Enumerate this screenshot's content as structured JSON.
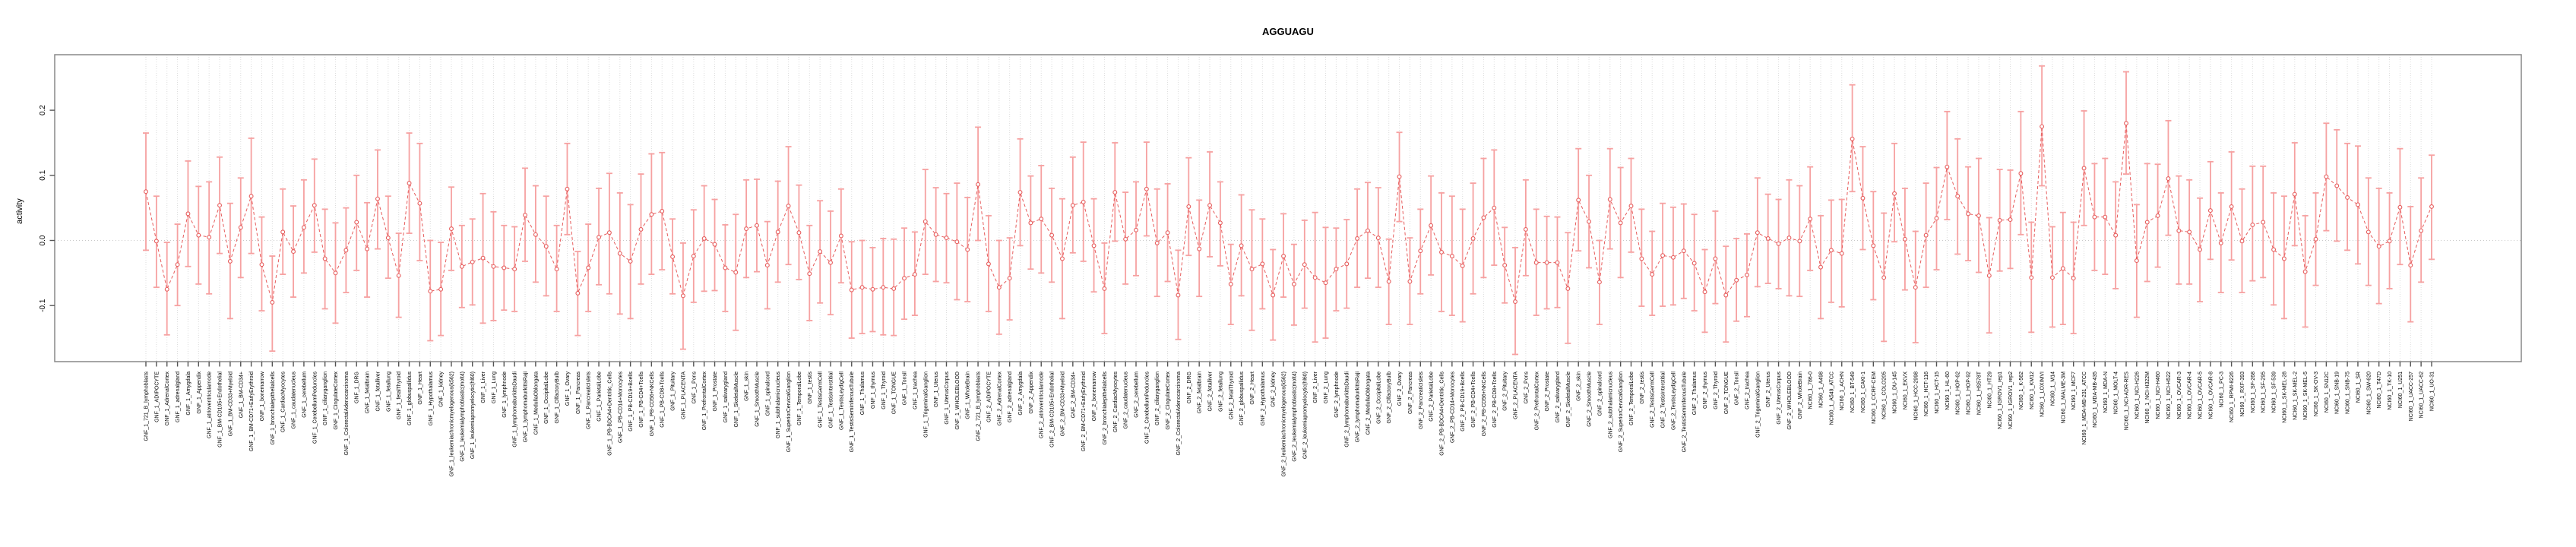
{
  "chart_data": {
    "type": "errorbar-line",
    "title": "AGGUAGU",
    "ylabel": "activity",
    "xlabel": "",
    "legend": "none",
    "grid": "vertical dotted line per category, horizontal dotted line at zero",
    "ylim": [
      -0.186,
      0.285
    ],
    "ytick_values": [
      0.2,
      0.1,
      0.0,
      -0.1
    ],
    "ytick_labels": [
      "0.2",
      "0.1",
      "0.0",
      "-0.1"
    ],
    "point_color": "#e65c5c",
    "whisker_color": "#f6a1a1",
    "gridline_color": "#dcdcdc",
    "zeroline_color": "#c8c8c8",
    "border_color": "#888888",
    "categories": [
      "GNF_1_721_B_lymphoblasts",
      "GNF_1_ADIPOCYTE",
      "GNF_1_AdrenalCortex",
      "GNF_1_adrenalgland",
      "GNF_1_Amygdala",
      "GNF_1_Appendix",
      "GNF_1_atrioventricularnode",
      "GNF_1_BM-CD105+Endothelial",
      "GNF_1_BM-CD33+Myeloid",
      "GNF_1_BM-CD34+",
      "GNF_1_BM-CD71+EarlyErythroid",
      "GNF_1_bonemarrow",
      "GNF_1_bronchialepithelialcells",
      "GNF_1_CardiacMyocytes",
      "GNF_1_caudatenucleus",
      "GNF_1_cerebellum",
      "GNF_1_CerebellumPeduncles",
      "GNF_1_ciliaryganglion",
      "GNF_1_CingulateCortex",
      "GNF_1_ColorectalAdenocarcinoma",
      "GNF_1_DRG",
      "GNF_1_fetalbrain",
      "GNF_1_fetalliver",
      "GNF_1_fetallung",
      "GNF_1_fetalThyroid",
      "GNF_1_globuspallidus",
      "GNF_1_Heart",
      "GNF_1_Hypothalamus",
      "GNF_1_kidney",
      "GNF_1_leukemiachronicmyelogenous(k562)",
      "GNF_1_leukemialymphoblastic(molt4)",
      "GNF_1_leukemiapromyelocytic(hl60)",
      "GNF_1_Liver",
      "GNF_1_Lung",
      "GNF_1_lymphnode",
      "GNF_1_lymphomaburkittsDaudi",
      "GNF_1_lymphomaburkittsRaji",
      "GNF_1_MedullaOblongata",
      "GNF_1_OccipitalLobe",
      "GNF_1_OlfactoryBulb",
      "GNF_1_Ovary",
      "GNF_1_Pancreas",
      "GNF_1_PancreaticIslets",
      "GNF_1_ParietalLobe",
      "GNF_1_PB-BDCA4+Dentritic_Cells",
      "GNF_1_PB-CD14+Monocytes",
      "GNF_1_PB-CD19+Bcells",
      "GNF_1_PB-CD4+Tcells",
      "GNF_1_PB-CD56+NKCells",
      "GNF_1_PB-CD8+Tcells",
      "GNF_1_Pituitary",
      "GNF_1_PLACENTA",
      "GNF_1_Pons",
      "GNF_1_PrefrontalCortex",
      "GNF_1_Prostate",
      "GNF_1_salivarygland",
      "GNF_1_SkeletalMuscle",
      "GNF_1_skin",
      "GNF_1_SmoothMuscle",
      "GNF_1_spinalcord",
      "GNF_1_subthalamicnucleus",
      "GNF_1_SuperiorCervicalGanglion",
      "GNF_1_TemporalLobe",
      "GNF_1_testis",
      "GNF_1_TestisGermCell",
      "GNF_1_TestisInterstitial",
      "GNF_1_TestisLeydigCell",
      "GNF_1_TestisSeminiferousTubule",
      "GNF_1_Thalamus",
      "GNF_1_thymus",
      "GNF_1_Thyroid",
      "GNF_1_TONGUE",
      "GNF_1_Tonsil",
      "GNF_1_trachea",
      "GNF_1_TrigeminalGanglion",
      "GNF_1_Uterus",
      "GNF_1_UterusCorpus",
      "GNF_1_WHOLEBLOOD",
      "GNF_1_WholeBrain",
      "GNF_2_721_B_lymphoblasts",
      "GNF_2_ADIPOCYTE",
      "GNF_2_AdrenalCortex",
      "GNF_2_adrenalgland",
      "GNF_2_Amygdala",
      "GNF_2_Appendix",
      "GNF_2_atrioventricularnode",
      "GNF_2_BM-CD105+Endothelial",
      "GNF_2_BM-CD33+Myeloid",
      "GNF_2_BM-CD34+",
      "GNF_2_BM-CD71+EarlyErythroid",
      "GNF_2_bonemarrow",
      "GNF_2_bronchialepithelialcells",
      "GNF_2_CardiacMyocytes",
      "GNF_2_caudatenucleus",
      "GNF_2_cerebellum",
      "GNF_2_CerebellumPeduncles",
      "GNF_2_ciliaryganglion",
      "GNF_2_CingulateCortex",
      "GNF_2_ColorectalAdenocarcinoma",
      "GNF_2_DRG",
      "GNF_2_fetalbrain",
      "GNF_2_fetalliver",
      "GNF_2_fetallung",
      "GNF_2_fetalThyroid",
      "GNF_2_globuspallidus",
      "GNF_2_Heart",
      "GNF_2_Hypothalamus",
      "GNF_2_kidney",
      "GNF_2_leukemiachronicmyelogenous(k562)",
      "GNF_2_leukemialymphoblastic(molt4)",
      "GNF_2_leukemiapromyelocytic(hl60)",
      "GNF_2_Liver",
      "GNF_2_Lung",
      "GNF_2_lymphnode",
      "GNF_2_lymphomaburkittsDaudi",
      "GNF_2_lymphomaburkittsRaji",
      "GNF_2_MedullaOblongata",
      "GNF_2_OccipitalLobe",
      "GNF_2_OlfactoryBulb",
      "GNF_2_Ovary",
      "GNF_2_Pancreas",
      "GNF_2_PancreaticIslets",
      "GNF_2_ParietalLobe",
      "GNF_2_PB-BDCA4+Dentritic_Cells",
      "GNF_2_PB-CD14+Monocytes",
      "GNF_2_PB-CD19+Bcells",
      "GNF_2_PB-CD4+Tcells",
      "GNF_2_PB-CD56+NKCells",
      "GNF_2_PB-CD8+Tcells",
      "GNF_2_Pituitary",
      "GNF_2_PLACENTA",
      "GNF_2_Pons",
      "GNF_2_PrefrontalCortex",
      "GNF_2_Prostate",
      "GNF_2_salivarygland",
      "GNF_2_SkeletalMuscle",
      "GNF_2_skin",
      "GNF_2_SmoothMuscle",
      "GNF_2_spinalcord",
      "GNF_2_subthalamicnucleus",
      "GNF_2_SuperiorCervicalGanglion",
      "GNF_2_TemporalLobe",
      "GNF_2_testis",
      "GNF_2_TestisGermCell",
      "GNF_2_TestisInterstitial",
      "GNF_2_TestisLeydigCell",
      "GNF_2_TestisSeminiferousTubule",
      "GNF_2_Thalamus",
      "GNF_2_thymus",
      "GNF_2_Thyroid",
      "GNF_2_TONGUE",
      "GNF_2_Tonsil",
      "GNF_2_trachea",
      "GNF_2_TrigeminalGanglion",
      "GNF_2_Uterus",
      "GNF_2_UterusCorpus",
      "GNF_2_WHOLEBLOOD",
      "GNF_2_WholeBrain",
      "NCI60_1_786-0",
      "NCI60_1_A498",
      "NCI60_1_A549_ATCC",
      "NCI60_1_ACHN",
      "NCI60_1_BT-549",
      "NCI60_1_CAKI-1",
      "NCI60_1_CCRF-CEM",
      "NCI60_1_COLO205",
      "NCI60_1_DU-145",
      "NCI60_1_EKVX",
      "NCI60_1_HCC-2998",
      "NCI60_1_HCT-116",
      "NCI60_1_HCT-15",
      "NCI60_1_HL-60",
      "NCI60_1_HOP-62",
      "NCI60_1_HOP-92",
      "NCI60_1_HS578T",
      "NCI60_1_HT29",
      "NCI60_1_IGROV1_rep1",
      "NCI60_1_IGROV1_rep2",
      "NCI60_1_K-562",
      "NCI60_1_KM12",
      "NCI60_1_LOXIMVI",
      "NCI60_1_M14",
      "NCI60_1_MALME-3M",
      "NCI60_1_MCF7",
      "NCI60_1_MDA-MB-231_ATCC",
      "NCI60_1_MDA-MB-435",
      "NCI60_1_MDA-N",
      "NCI60_1_MOLT-4",
      "NCI60_1_NCI-ADR-RES",
      "NCI60_1_NCI-H226",
      "NCI60_1_NCI-H322M",
      "NCI60_1_NCI-H460",
      "NCI60_1_NCI-H522",
      "NCI60_1_OVCAR-3",
      "NCI60_1_OVCAR-4",
      "NCI60_1_OVCAR-5",
      "NCI60_1_OVCAR-8",
      "NCI60_1_PC-3",
      "NCI60_1_RPMI-8226",
      "NCI60_1_RXF-393",
      "NCI60_1_SF-268",
      "NCI60_1_SF-295",
      "NCI60_1_SF-539",
      "NCI60_1_SK-MEL-28",
      "NCI60_1_SK-MEL-2",
      "NCI60_1_SK-MEL-5",
      "NCI60_1_SK-OV-3",
      "NCI60_1_SN12C",
      "NCI60_1_SNB-19",
      "NCI60_1_SNB-75",
      "NCI60_1_SR",
      "NCI60_1_SW-620",
      "NCI60_1_T47D",
      "NCI60_1_TK-10",
      "NCI60_1_U251",
      "NCI60_1_UACC-257",
      "NCI60_1_UACC-62",
      "NCI60_1_UO-31"
    ],
    "series": [
      {
        "name": "mean",
        "values": [
          0.075,
          -0.001,
          -0.075,
          -0.037,
          0.041,
          0.008,
          0.005,
          0.054,
          -0.032,
          0.02,
          0.068,
          -0.037,
          -0.095,
          0.013,
          -0.017,
          0.02,
          0.054,
          -0.028,
          -0.05,
          -0.015,
          0.028,
          -0.013,
          0.064,
          0.004,
          -0.054,
          0.088,
          0.057,
          -0.078,
          -0.075,
          0.018,
          -0.04,
          -0.033,
          -0.027,
          -0.04,
          -0.042,
          -0.044,
          0.039,
          0.009,
          -0.009,
          -0.044,
          0.079,
          -0.081,
          -0.042,
          0.005,
          0.012,
          -0.02,
          -0.032,
          0.017,
          0.04,
          0.045,
          -0.025,
          -0.085,
          -0.024,
          0.003,
          -0.006,
          -0.042,
          -0.049,
          0.018,
          0.023,
          -0.038,
          0.013,
          0.053,
          0.012,
          -0.051,
          -0.017,
          -0.034,
          0.007,
          -0.076,
          -0.072,
          -0.075,
          -0.072,
          -0.074,
          -0.058,
          -0.052,
          0.029,
          0.009,
          0.004,
          -0.002,
          -0.014,
          0.086,
          -0.036,
          -0.072,
          -0.058,
          0.074,
          0.027,
          0.033,
          0.008,
          -0.028,
          0.054,
          0.059,
          -0.008,
          -0.074,
          0.074,
          0.002,
          0.016,
          0.079,
          -0.004,
          0.012,
          -0.084,
          0.052,
          -0.013,
          0.054,
          0.027,
          -0.067,
          -0.008,
          -0.044,
          -0.036,
          -0.084,
          -0.024,
          -0.067,
          -0.037,
          -0.057,
          -0.065,
          -0.044,
          -0.036,
          0.003,
          0.015,
          0.004,
          -0.063,
          0.098,
          -0.063,
          -0.016,
          0.023,
          -0.018,
          -0.024,
          -0.039,
          0.003,
          0.035,
          0.05,
          -0.038,
          -0.094,
          0.017,
          -0.034,
          -0.034,
          -0.034,
          -0.074,
          0.062,
          0.029,
          -0.064,
          0.063,
          0.027,
          0.053,
          -0.028,
          -0.052,
          -0.023,
          -0.026,
          -0.016,
          -0.035,
          -0.079,
          -0.028,
          -0.084,
          -0.061,
          -0.053,
          0.012,
          0.003,
          -0.005,
          0.004,
          -0.001,
          0.033,
          -0.041,
          -0.015,
          -0.02,
          0.156,
          0.065,
          -0.008,
          -0.057,
          0.072,
          0.002,
          -0.072,
          0.008,
          0.034,
          0.113,
          0.068,
          0.041,
          0.038,
          -0.054,
          0.031,
          0.032,
          0.103,
          -0.057,
          0.175,
          -0.057,
          -0.043,
          -0.058,
          0.111,
          0.036,
          0.036,
          0.008,
          0.18,
          -0.031,
          0.028,
          0.038,
          0.095,
          0.015,
          0.013,
          -0.014,
          0.046,
          -0.004,
          0.052,
          -0.001,
          0.024,
          0.028,
          -0.014,
          -0.028,
          0.071,
          -0.048,
          0.002,
          0.098,
          0.084,
          0.066,
          0.055,
          0.013,
          -0.009,
          -0.001,
          0.051,
          -0.038,
          0.015,
          0.052
        ]
      },
      {
        "name": "lower",
        "values": [
          -0.015,
          -0.072,
          -0.145,
          -0.1,
          -0.04,
          -0.067,
          -0.082,
          -0.02,
          -0.12,
          -0.057,
          -0.02,
          -0.108,
          -0.17,
          -0.052,
          -0.087,
          -0.05,
          -0.018,
          -0.105,
          -0.127,
          -0.08,
          -0.046,
          -0.087,
          -0.013,
          -0.058,
          -0.118,
          0.011,
          -0.031,
          -0.154,
          -0.146,
          -0.046,
          -0.103,
          -0.099,
          -0.127,
          -0.123,
          -0.107,
          -0.109,
          -0.032,
          -0.064,
          -0.085,
          -0.109,
          0.009,
          -0.146,
          -0.109,
          -0.068,
          -0.082,
          -0.113,
          -0.12,
          -0.067,
          -0.052,
          -0.045,
          -0.082,
          -0.167,
          -0.095,
          -0.078,
          -0.077,
          -0.109,
          -0.138,
          -0.057,
          -0.048,
          -0.105,
          -0.064,
          -0.037,
          -0.06,
          -0.123,
          -0.096,
          -0.114,
          -0.065,
          -0.15,
          -0.143,
          -0.14,
          -0.145,
          -0.146,
          -0.121,
          -0.115,
          -0.052,
          -0.063,
          -0.065,
          -0.091,
          -0.094,
          0.0,
          -0.109,
          -0.144,
          -0.122,
          -0.008,
          -0.044,
          -0.05,
          -0.064,
          -0.12,
          -0.019,
          -0.032,
          -0.079,
          -0.143,
          -0.001,
          -0.067,
          -0.054,
          0.007,
          -0.086,
          -0.063,
          -0.152,
          -0.023,
          -0.086,
          -0.025,
          -0.039,
          -0.129,
          -0.085,
          -0.138,
          -0.105,
          -0.153,
          -0.087,
          -0.13,
          -0.104,
          -0.156,
          -0.15,
          -0.108,
          -0.104,
          -0.072,
          -0.058,
          -0.072,
          -0.129,
          0.029,
          -0.129,
          -0.082,
          -0.053,
          -0.109,
          -0.115,
          -0.125,
          -0.082,
          -0.057,
          -0.038,
          -0.096,
          -0.175,
          -0.054,
          -0.115,
          -0.105,
          -0.103,
          -0.158,
          -0.016,
          -0.042,
          -0.129,
          -0.013,
          -0.057,
          -0.018,
          -0.101,
          -0.115,
          -0.101,
          -0.099,
          -0.089,
          -0.108,
          -0.141,
          -0.097,
          -0.156,
          -0.124,
          -0.117,
          -0.071,
          -0.066,
          -0.074,
          -0.085,
          -0.086,
          -0.046,
          -0.12,
          -0.095,
          -0.102,
          0.075,
          -0.014,
          -0.091,
          -0.155,
          -0.002,
          -0.076,
          -0.157,
          -0.072,
          -0.045,
          0.032,
          -0.021,
          -0.031,
          -0.049,
          -0.142,
          -0.047,
          -0.043,
          0.009,
          -0.141,
          0.084,
          -0.133,
          -0.129,
          -0.143,
          0.023,
          -0.046,
          -0.052,
          -0.074,
          0.102,
          -0.118,
          -0.063,
          -0.041,
          0.008,
          -0.067,
          -0.067,
          -0.094,
          -0.029,
          -0.08,
          -0.03,
          -0.08,
          -0.062,
          -0.057,
          -0.099,
          -0.12,
          -0.008,
          -0.133,
          -0.069,
          0.015,
          -0.001,
          -0.015,
          -0.036,
          -0.069,
          -0.097,
          -0.074,
          -0.037,
          -0.125,
          -0.064,
          -0.029
        ]
      },
      {
        "name": "upper",
        "values": [
          0.165,
          0.068,
          -0.003,
          0.025,
          0.122,
          0.083,
          0.09,
          0.128,
          0.057,
          0.096,
          0.157,
          0.036,
          -0.024,
          0.079,
          0.053,
          0.093,
          0.125,
          0.048,
          0.027,
          0.05,
          0.1,
          0.058,
          0.139,
          0.068,
          0.011,
          0.165,
          0.149,
          0.0,
          -0.003,
          0.082,
          0.023,
          0.033,
          0.072,
          0.044,
          0.023,
          0.021,
          0.111,
          0.084,
          0.068,
          0.023,
          0.149,
          -0.017,
          0.025,
          0.08,
          0.103,
          0.073,
          0.055,
          0.102,
          0.133,
          0.135,
          0.033,
          -0.004,
          0.047,
          0.084,
          0.063,
          0.024,
          0.04,
          0.093,
          0.094,
          0.029,
          0.091,
          0.144,
          0.085,
          0.023,
          0.061,
          0.045,
          0.079,
          -0.002,
          0.0,
          -0.011,
          0.003,
          0.002,
          0.019,
          0.013,
          0.109,
          0.081,
          0.072,
          0.088,
          0.066,
          0.174,
          0.038,
          0.0,
          0.004,
          0.156,
          0.099,
          0.115,
          0.08,
          0.064,
          0.128,
          0.151,
          0.064,
          -0.004,
          0.15,
          0.074,
          0.09,
          0.151,
          0.079,
          0.087,
          -0.015,
          0.127,
          0.062,
          0.136,
          0.09,
          -0.006,
          0.07,
          0.047,
          0.033,
          -0.014,
          0.041,
          -0.006,
          0.031,
          0.043,
          0.02,
          0.019,
          0.032,
          0.079,
          0.089,
          0.081,
          0.002,
          0.166,
          0.004,
          0.048,
          0.099,
          0.073,
          0.068,
          0.048,
          0.088,
          0.126,
          0.139,
          0.02,
          -0.011,
          0.093,
          0.048,
          0.037,
          0.036,
          0.012,
          0.141,
          0.1,
          0.0,
          0.141,
          0.112,
          0.126,
          0.048,
          0.014,
          0.057,
          0.051,
          0.056,
          0.04,
          -0.014,
          0.045,
          -0.009,
          0.003,
          0.01,
          0.096,
          0.071,
          0.063,
          0.093,
          0.084,
          0.113,
          0.038,
          0.062,
          0.063,
          0.239,
          0.144,
          0.075,
          0.042,
          0.149,
          0.08,
          0.014,
          0.088,
          0.112,
          0.198,
          0.156,
          0.113,
          0.126,
          0.035,
          0.109,
          0.108,
          0.198,
          0.028,
          0.268,
          0.021,
          0.043,
          0.028,
          0.199,
          0.118,
          0.126,
          0.09,
          0.259,
          0.055,
          0.118,
          0.117,
          0.184,
          0.099,
          0.093,
          0.065,
          0.121,
          0.073,
          0.136,
          0.079,
          0.114,
          0.114,
          0.073,
          0.068,
          0.15,
          0.038,
          0.073,
          0.18,
          0.17,
          0.149,
          0.145,
          0.096,
          0.08,
          0.073,
          0.141,
          0.052,
          0.096,
          0.131
        ]
      }
    ]
  }
}
